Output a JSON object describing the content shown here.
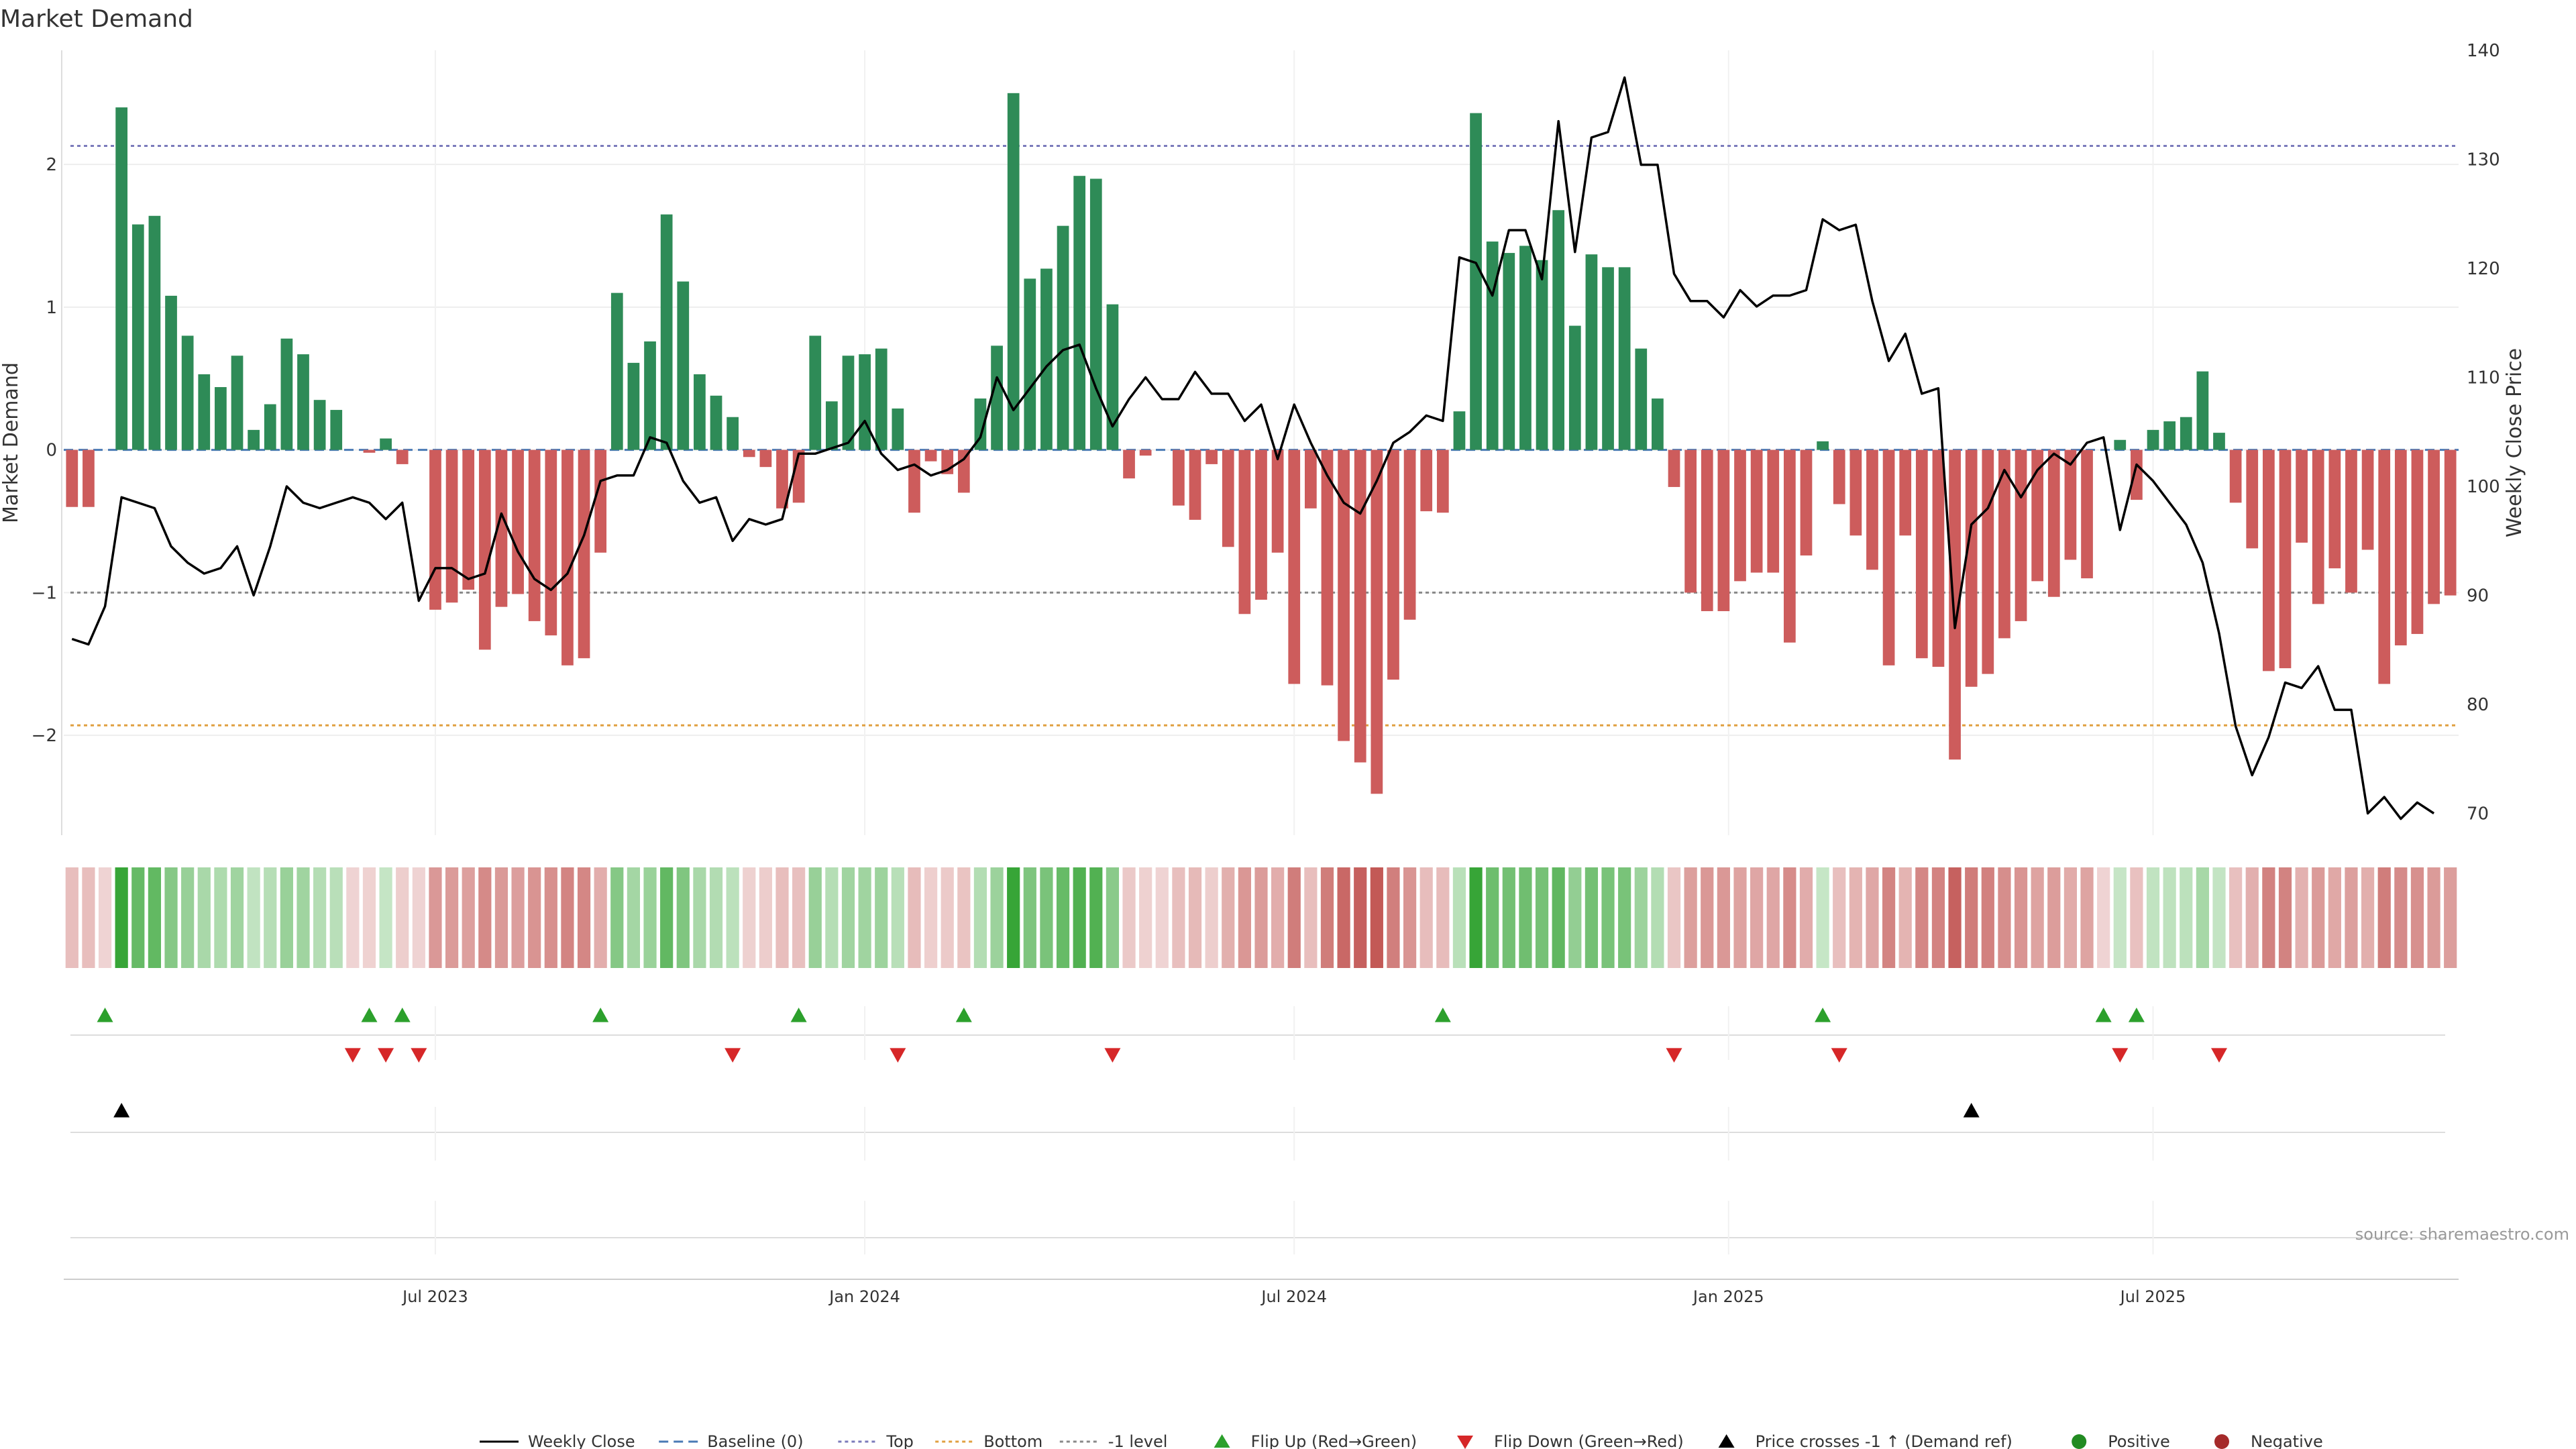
{
  "chart_data": {
    "type": "bar",
    "title": "Market Demand",
    "ylabel_left": "Market Demand",
    "ylabel_right": "Weekly Close Price",
    "ylim_left": [
      -2.7,
      2.8
    ],
    "ylim_right": [
      68,
      140
    ],
    "yticks_left": [
      2,
      1,
      0,
      -1,
      -2
    ],
    "ytick_labels_left": [
      "2",
      "1",
      "0",
      "−1",
      "−2"
    ],
    "yticks_right": [
      140,
      130,
      120,
      110,
      100,
      90,
      80,
      70
    ],
    "ytick_labels_right": [
      "140",
      "130",
      "120",
      "110",
      "100",
      "90",
      "80",
      "70"
    ],
    "reference_levels": {
      "top": 2.13,
      "bottom": -1.93,
      "minus_one": -1.0
    },
    "x_ticks": [
      {
        "label": "Jul 2023",
        "week": 22
      },
      {
        "label": "Jan 2024",
        "week": 48
      },
      {
        "label": "Jul 2024",
        "week": 74
      },
      {
        "label": "Jan 2025",
        "week": 100.3
      },
      {
        "label": "Jul 2025",
        "week": 126
      }
    ],
    "demand": [
      -0.4,
      -0.4,
      0,
      2.4,
      1.58,
      1.64,
      1.08,
      0.8,
      0.53,
      0.44,
      0.66,
      0.14,
      0.32,
      0.78,
      0.67,
      0.35,
      0.28,
      0,
      -0.02,
      0.08,
      -0.1,
      0,
      -1.12,
      -1.07,
      -0.98,
      -1.4,
      -1.1,
      -1.01,
      -1.2,
      -1.3,
      -1.51,
      -1.46,
      -0.72,
      1.1,
      0.61,
      0.76,
      1.65,
      1.18,
      0.53,
      0.38,
      0.23,
      -0.05,
      -0.12,
      -0.41,
      -0.37,
      0.8,
      0.34,
      0.66,
      0.67,
      0.71,
      0.29,
      -0.44,
      -0.08,
      -0.17,
      -0.3,
      0.36,
      0.73,
      2.5,
      1.2,
      1.27,
      1.57,
      1.92,
      1.9,
      1.02,
      -0.2,
      -0.04,
      0,
      -0.39,
      -0.49,
      -0.1,
      -0.68,
      -1.15,
      -1.05,
      -0.72,
      -1.64,
      -0.41,
      -1.65,
      -2.04,
      -2.19,
      -2.41,
      -1.61,
      -1.19,
      -0.43,
      -0.44,
      0.27,
      2.36,
      1.46,
      1.38,
      1.43,
      1.33,
      1.68,
      0.87,
      1.37,
      1.28,
      1.28,
      0.71,
      0.36,
      -0.26,
      -1.0,
      -1.13,
      -1.13,
      -0.92,
      -0.86,
      -0.86,
      -1.35,
      -0.74,
      0.06,
      -0.38,
      -0.6,
      -0.84,
      -1.51,
      -0.6,
      -1.46,
      -1.52,
      -2.17,
      -1.66,
      -1.57,
      -1.32,
      -1.2,
      -0.92,
      -1.03,
      -0.77,
      -0.9,
      0,
      0.07,
      -0.35,
      0.14,
      0.2,
      0.23,
      0.55,
      0.12,
      -0.37,
      -0.69,
      -1.55,
      -1.53,
      -0.65,
      -1.08,
      -0.83,
      -1.0,
      -0.7,
      -1.64,
      -1.37,
      -1.29,
      -1.08,
      -1.02
    ],
    "weekly_close": [
      86,
      85.5,
      89,
      99,
      98.5,
      98,
      94.5,
      93,
      92,
      92.5,
      94.5,
      90,
      94.5,
      100,
      98.5,
      98,
      98.5,
      99,
      98.5,
      97,
      98.5,
      89.5,
      92.5,
      92.5,
      91.5,
      92,
      97.5,
      94,
      91.5,
      90.5,
      92,
      95.5,
      100.5,
      101,
      101,
      104.5,
      104,
      100.5,
      98.5,
      99,
      95,
      97,
      96.5,
      97,
      103,
      103,
      103.5,
      104,
      106,
      103,
      101.5,
      102,
      101,
      101.5,
      102.5,
      104.5,
      110,
      107,
      109,
      111,
      112.5,
      113,
      109,
      105.5,
      108,
      110,
      108,
      108,
      110.5,
      108.5,
      108.5,
      106,
      107.5,
      102.5,
      107.5,
      104,
      101,
      98.5,
      97.5,
      100.5,
      104,
      105,
      106.5,
      106,
      121,
      120.5,
      117.5,
      123.5,
      123.5,
      119,
      133.5,
      121.5,
      132,
      132.5,
      137.5,
      129.5,
      129.5,
      119.5,
      117,
      117,
      115.5,
      118,
      116.5,
      117.5,
      117.5,
      118,
      124.5,
      123.5,
      124,
      117,
      111.5,
      114,
      108.5,
      109,
      87,
      96.5,
      98,
      101.5,
      99,
      101.5,
      103,
      102,
      104,
      104.5,
      96,
      102,
      100.5,
      98.5,
      96.5,
      93,
      86.5,
      78,
      73.5,
      77,
      82,
      81.5,
      83.5,
      79.5,
      79.5,
      70,
      71.5,
      69.5,
      71,
      70
    ],
    "regime_shade_note": "intensity strip mirrors demand sign and magnitude",
    "flip_up_weeks": [
      2,
      18,
      20,
      32,
      44,
      54,
      83,
      106,
      123,
      125
    ],
    "flip_down_weeks": [
      17,
      19,
      21,
      40,
      50,
      63,
      97,
      107,
      124,
      130
    ],
    "price_cross_weeks": [
      3,
      115
    ],
    "legend": [
      {
        "label": "Weekly Close",
        "kind": "line"
      },
      {
        "label": "Baseline (0)",
        "kind": "dash-blue"
      },
      {
        "label": "Top",
        "kind": "dot-purple"
      },
      {
        "label": "Bottom",
        "kind": "dot-orange"
      },
      {
        "label": "-1 level",
        "kind": "dot-gray"
      },
      {
        "label": "Flip Up (Red→Green)",
        "kind": "tri-up-green"
      },
      {
        "label": "Flip Down (Green→Red)",
        "kind": "tri-down-red"
      },
      {
        "label": "Price crosses -1 ↑ (Demand ref)",
        "kind": "tri-up-black"
      },
      {
        "label": "Positive",
        "kind": "dot-green"
      },
      {
        "label": "Negative",
        "kind": "dot-red"
      }
    ],
    "source": "source: sharemaestro.com"
  },
  "colors": {
    "positive": "#2e8b57",
    "negative": "#cd5c5c",
    "price_line": "#000000",
    "top_line": "#7b7bbb",
    "bottom_line": "#e0a040",
    "minus_one_line": "#888888",
    "baseline": "#4a7ab5",
    "flip_up": "#2ca02c",
    "flip_down": "#d62728",
    "legend_positive": "#228b22",
    "legend_negative": "#a52a2a"
  }
}
